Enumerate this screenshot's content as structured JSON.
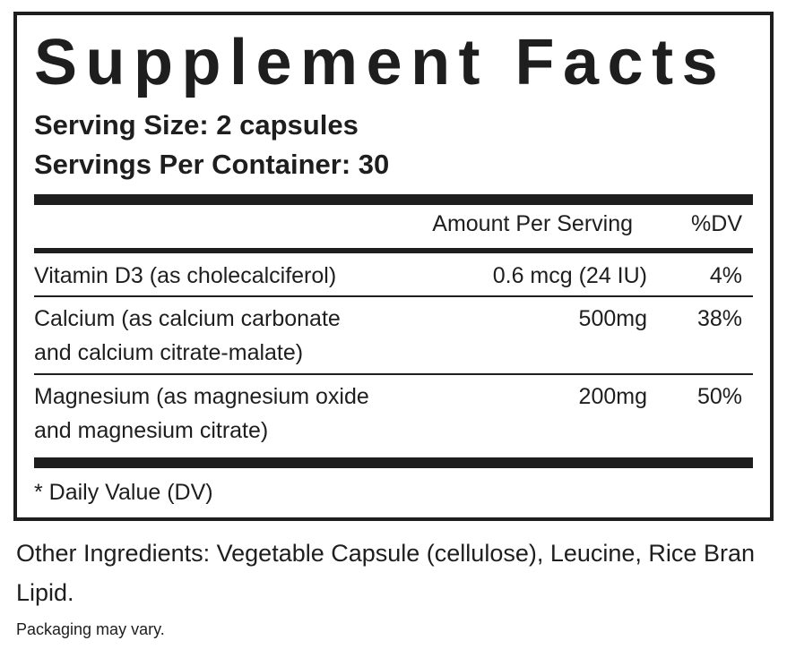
{
  "label": {
    "title": "Supplement Facts",
    "serving_size": "Serving Size: 2 capsules",
    "servings_per_container": "Servings Per Container: 30",
    "columns": [
      "Amount Per Serving",
      "%DV"
    ],
    "rows": [
      {
        "name": [
          "Vitamin D3 (as cholecalciferol)"
        ],
        "amount": "0.6 mcg (24 IU)",
        "dv": "4%"
      },
      {
        "name": [
          "Calcium (as calcium carbonate",
          "and calcium citrate-malate)"
        ],
        "amount": "500mg",
        "dv": "38%"
      },
      {
        "name": [
          "Magnesium (as magnesium oxide",
          "and magnesium citrate)"
        ],
        "amount": "200mg",
        "dv": "50%"
      }
    ],
    "footnote": "* Daily Value (DV)"
  },
  "other_ingredients": "Other Ingredients: Vegetable Capsule (cellulose), Leucine, Rice Bran Lipid.",
  "note": "Packaging may vary."
}
